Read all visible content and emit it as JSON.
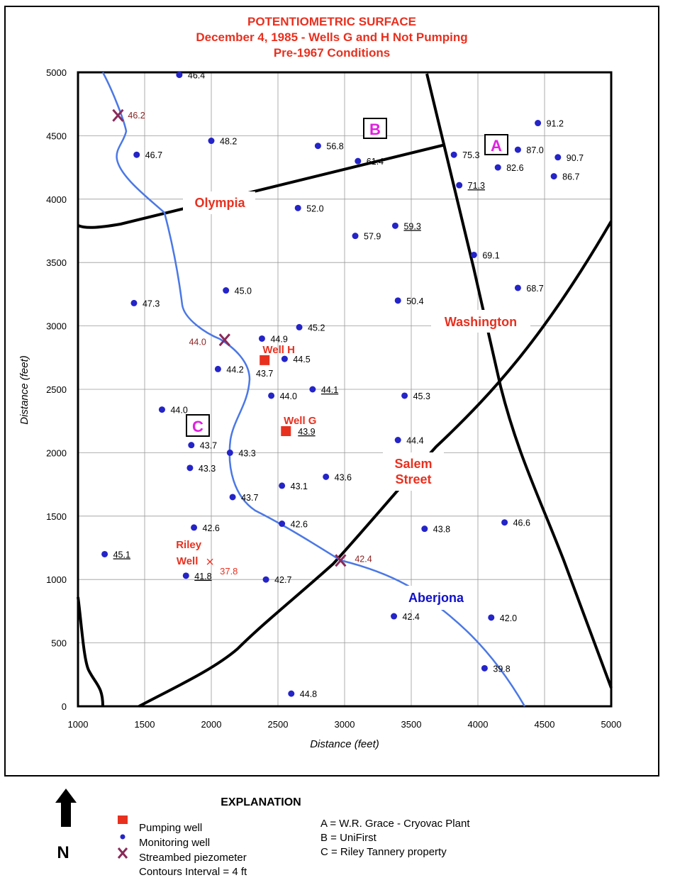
{
  "title": {
    "line1": "POTENTIOMETRIC SURFACE",
    "line2": "December 4, 1985 - Wells G and H Not Pumping",
    "line3": "Pre-1967 Conditions"
  },
  "chart_data": {
    "type": "map",
    "xlabel": "Distance (feet)",
    "ylabel": "Distance (feet)",
    "xlim": [
      1000,
      5000
    ],
    "ylim": [
      0,
      5000
    ],
    "x_ticks": [
      "1000",
      "1500",
      "2000",
      "2500",
      "3000",
      "3500",
      "4000",
      "4500",
      "5000"
    ],
    "y_ticks": [
      "0",
      "500",
      "1000",
      "1500",
      "2000",
      "2500",
      "3000",
      "3500",
      "4000",
      "4500",
      "5000"
    ],
    "monitoring_wells": [
      {
        "x": 1760,
        "y": 4980,
        "label": "46.4",
        "u": false
      },
      {
        "x": 2000,
        "y": 4460,
        "label": "48.2",
        "u": false
      },
      {
        "x": 1440,
        "y": 4350,
        "label": "46.7",
        "u": false
      },
      {
        "x": 2800,
        "y": 4420,
        "label": "56.8",
        "u": false
      },
      {
        "x": 3100,
        "y": 4300,
        "label": "61.4",
        "u": false
      },
      {
        "x": 3820,
        "y": 4350,
        "label": "75.3",
        "u": false
      },
      {
        "x": 4300,
        "y": 4390,
        "label": "87.0",
        "u": false
      },
      {
        "x": 4450,
        "y": 4600,
        "label": "91.2",
        "u": false
      },
      {
        "x": 4600,
        "y": 4330,
        "label": "90.7",
        "u": false
      },
      {
        "x": 4150,
        "y": 4250,
        "label": "82.6",
        "u": false
      },
      {
        "x": 4570,
        "y": 4180,
        "label": "86.7",
        "u": false
      },
      {
        "x": 3860,
        "y": 4110,
        "label": "71.3",
        "u": true
      },
      {
        "x": 2650,
        "y": 3930,
        "label": "52.0",
        "u": false
      },
      {
        "x": 3380,
        "y": 3790,
        "label": "59.3",
        "u": true
      },
      {
        "x": 3080,
        "y": 3710,
        "label": "57.9",
        "u": false
      },
      {
        "x": 3970,
        "y": 3560,
        "label": "69.1",
        "u": false
      },
      {
        "x": 4300,
        "y": 3300,
        "label": "68.7",
        "u": false
      },
      {
        "x": 2110,
        "y": 3280,
        "label": "45.0",
        "u": false
      },
      {
        "x": 1420,
        "y": 3180,
        "label": "47.3",
        "u": false
      },
      {
        "x": 3400,
        "y": 3200,
        "label": "50.4",
        "u": false
      },
      {
        "x": 2660,
        "y": 2990,
        "label": "45.2",
        "u": false
      },
      {
        "x": 2380,
        "y": 2900,
        "label": "44.9",
        "u": false
      },
      {
        "x": 2550,
        "y": 2740,
        "label": "44.5",
        "u": false
      },
      {
        "x": 2050,
        "y": 2660,
        "label": "44.2",
        "u": false
      },
      {
        "x": 2760,
        "y": 2500,
        "label": "44.1",
        "u": true
      },
      {
        "x": 2450,
        "y": 2450,
        "label": "44.0",
        "u": false
      },
      {
        "x": 3450,
        "y": 2450,
        "label": "45.3",
        "u": false
      },
      {
        "x": 1630,
        "y": 2340,
        "label": "44.0",
        "u": false
      },
      {
        "x": 1850,
        "y": 2060,
        "label": "43.7",
        "u": false
      },
      {
        "x": 3400,
        "y": 2100,
        "label": "44.4",
        "u": false
      },
      {
        "x": 2140,
        "y": 2000,
        "label": "43.3",
        "u": false
      },
      {
        "x": 1840,
        "y": 1880,
        "label": "43.3",
        "u": false
      },
      {
        "x": 2860,
        "y": 1810,
        "label": "43.6",
        "u": false
      },
      {
        "x": 2530,
        "y": 1740,
        "label": "43.1",
        "u": false
      },
      {
        "x": 2160,
        "y": 1650,
        "label": "43.7",
        "u": false
      },
      {
        "x": 1870,
        "y": 1410,
        "label": "42.6",
        "u": false
      },
      {
        "x": 2530,
        "y": 1440,
        "label": "42.6",
        "u": false
      },
      {
        "x": 3600,
        "y": 1400,
        "label": "43.8",
        "u": false
      },
      {
        "x": 4200,
        "y": 1450,
        "label": "46.6",
        "u": false
      },
      {
        "x": 1200,
        "y": 1200,
        "label": "45.1",
        "u": true
      },
      {
        "x": 1810,
        "y": 1030,
        "label": "41.8",
        "u": true
      },
      {
        "x": 2410,
        "y": 1000,
        "label": "42.7",
        "u": false
      },
      {
        "x": 3370,
        "y": 710,
        "label": "42.4",
        "u": false
      },
      {
        "x": 4100,
        "y": 700,
        "label": "42.0",
        "u": false
      },
      {
        "x": 4050,
        "y": 300,
        "label": "39.8",
        "u": false
      },
      {
        "x": 2600,
        "y": 100,
        "label": "44.8",
        "u": false
      }
    ],
    "pumping_wells": [
      {
        "x": 2400,
        "y": 2730,
        "label": "Well H",
        "value": "43.7"
      },
      {
        "x": 2560,
        "y": 2170,
        "label": "Well G",
        "value": "43.9"
      }
    ],
    "piezometers": [
      {
        "x": 1300,
        "y": 4660,
        "label": "46.2"
      },
      {
        "x": 2100,
        "y": 2890,
        "label": "44.0"
      },
      {
        "x": 2970,
        "y": 1150,
        "label": "42.4"
      }
    ],
    "riley_well": {
      "x": 1990,
      "y": 1140,
      "label": "Riley Well",
      "value": "37.8"
    },
    "sites": [
      "A",
      "B",
      "C"
    ],
    "area_labels": {
      "olympia": "Olympia",
      "washington": "Washington",
      "salem": "Salem Street",
      "aberjona": "Aberjona"
    }
  },
  "legend": {
    "north": "N",
    "title": "EXPLANATION",
    "pumping": "Pumping well",
    "monitoring": "Monitoring well",
    "piezometer": "Streambed piezometer",
    "contour": "Contours Interval = 4 ft",
    "site_a": "A = W.R. Grace - Cryovac Plant",
    "site_b": "B = UniFirst",
    "site_c": "C = Riley Tannery property"
  },
  "colors": {
    "title": "#e8301f",
    "well": "#2424c8",
    "pumping": "#e8301f",
    "piezometer": "#8a2a5a",
    "river": "#4b78e6",
    "site": "#e020e0"
  }
}
